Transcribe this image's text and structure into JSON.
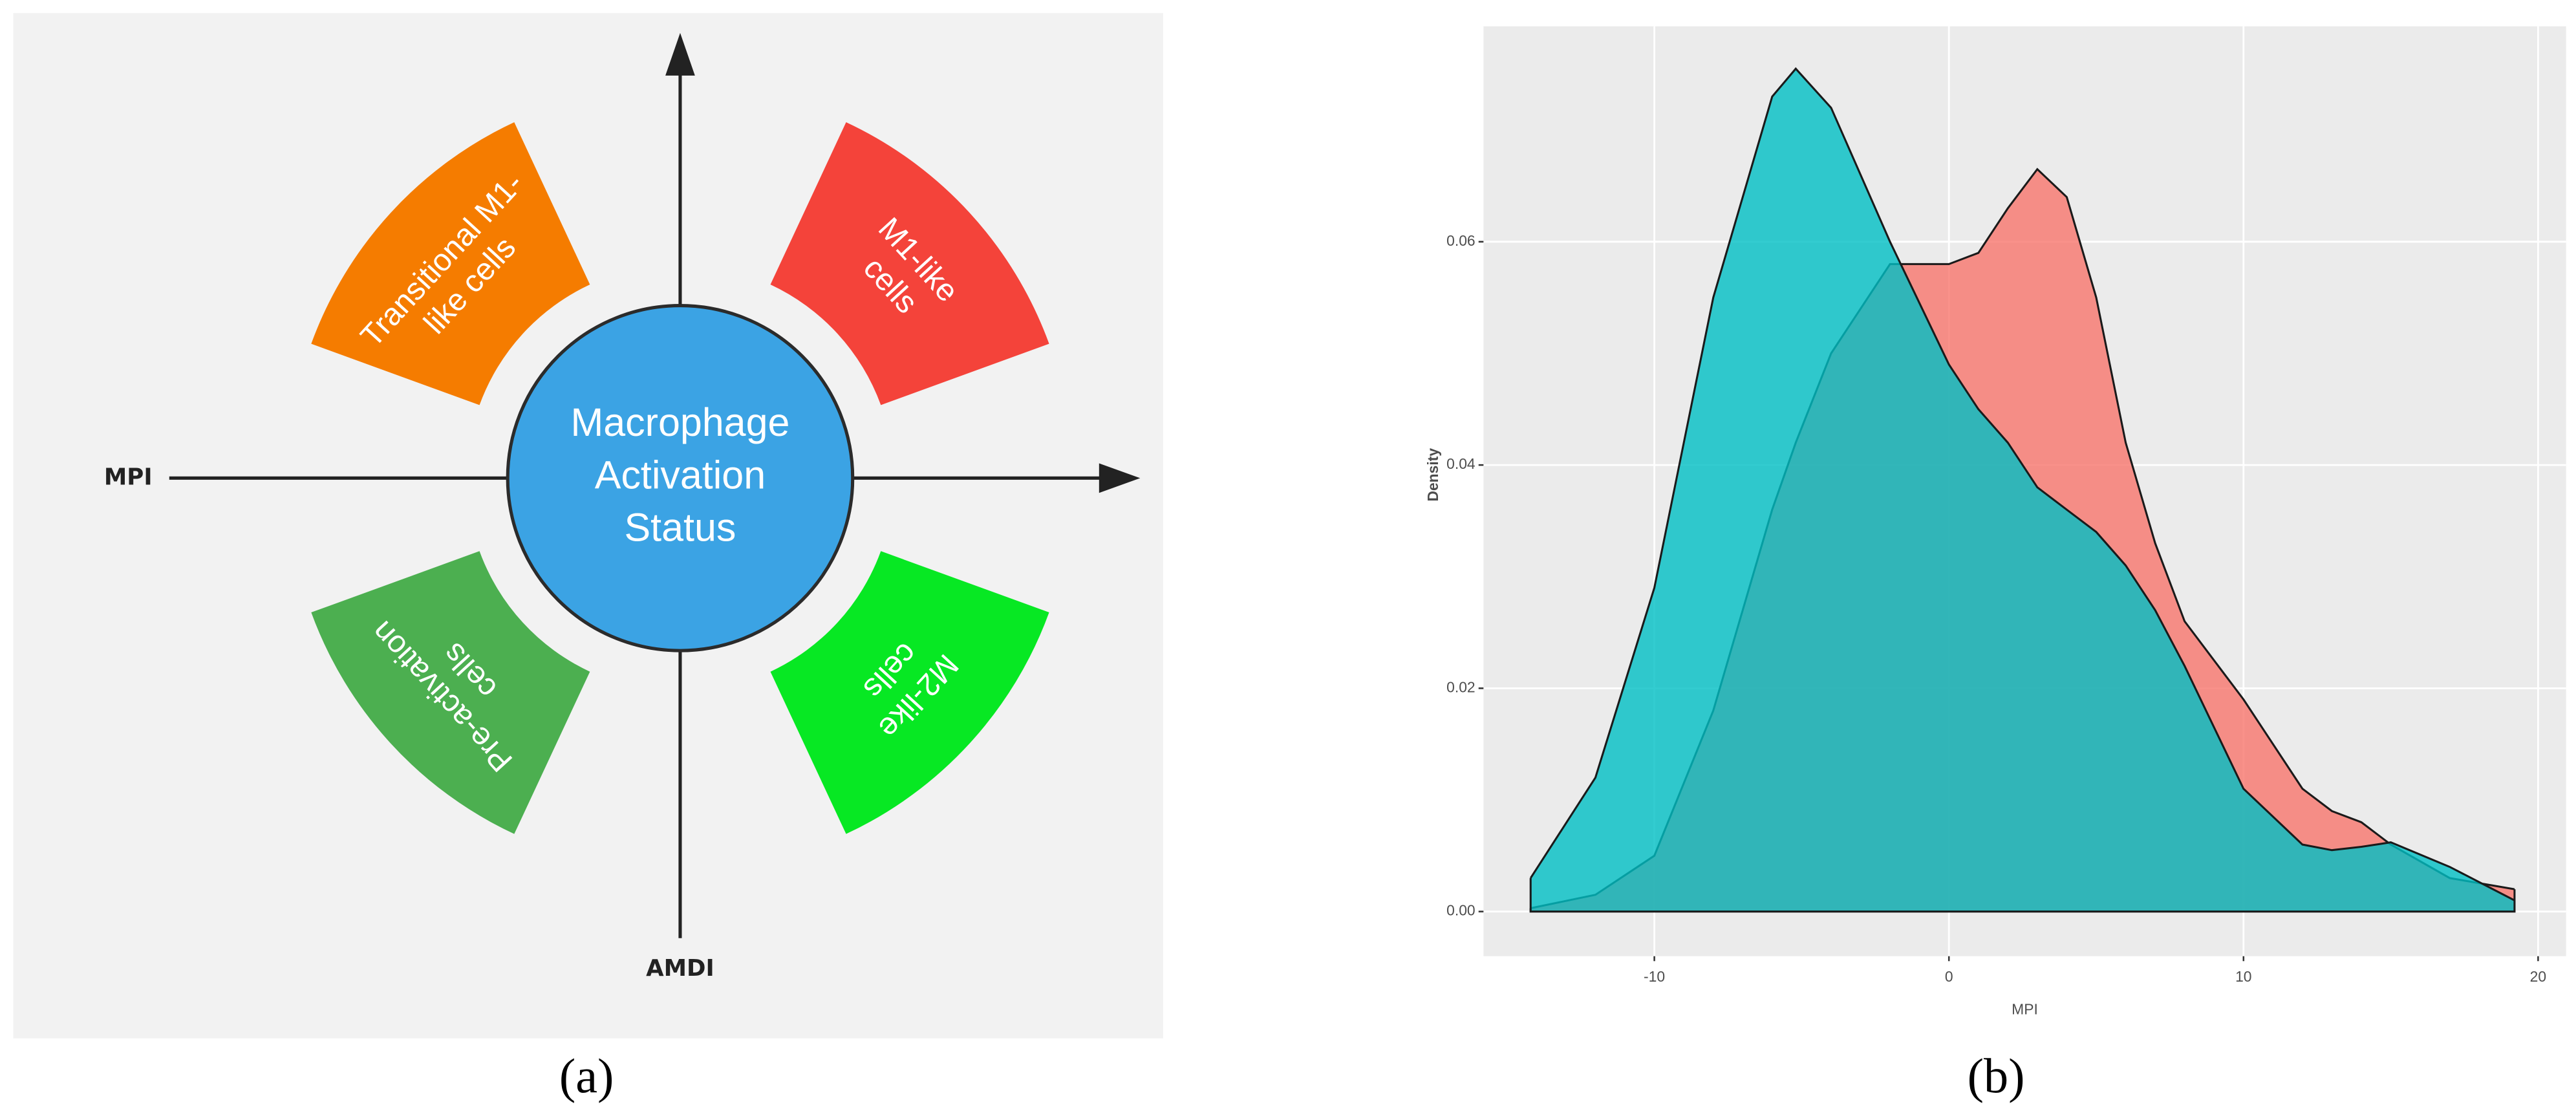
{
  "diagram": {
    "center_lines": [
      "Macrophage",
      "Activation",
      "Status"
    ],
    "x_axis": "MPI",
    "y_axis": "AMDI",
    "panel_label": "(a)",
    "sectors": [
      {
        "lines": [
          "Transitional M1-",
          "like cells"
        ],
        "color": "#f57c00"
      },
      {
        "lines": [
          "M1-like",
          "cells"
        ],
        "color": "#f4433a"
      },
      {
        "lines": [
          "M2-like",
          "cells"
        ],
        "color": "#07e823"
      },
      {
        "lines": [
          "Pre-activation",
          "cells"
        ],
        "color": "#4caf50"
      }
    ]
  },
  "chart_data": {
    "type": "density",
    "panel_label": "(b)",
    "x_label": "MPI",
    "y_label": "Density",
    "x": [
      -14.2,
      -12,
      -10,
      -8,
      -6,
      -5.2,
      -4,
      -2,
      0,
      1,
      2,
      3,
      4,
      5,
      6,
      7,
      8,
      10,
      12,
      13,
      14,
      15,
      17,
      19.2
    ],
    "series": [
      {
        "color": "#F8766D",
        "values": [
          0.0003,
          0.0015,
          0.005,
          0.018,
          0.036,
          0.042,
          0.05,
          0.058,
          0.058,
          0.059,
          0.063,
          0.0665,
          0.064,
          0.055,
          0.042,
          0.033,
          0.026,
          0.019,
          0.011,
          0.009,
          0.008,
          0.006,
          0.003,
          0.002
        ]
      },
      {
        "color": "#00BFC4",
        "values": [
          0.003,
          0.012,
          0.029,
          0.055,
          0.073,
          0.0755,
          0.072,
          0.06,
          0.049,
          0.045,
          0.042,
          0.038,
          0.036,
          0.034,
          0.031,
          0.027,
          0.022,
          0.011,
          0.006,
          0.0055,
          0.0058,
          0.0062,
          0.004,
          0.001
        ]
      }
    ],
    "opacity": 0.8,
    "xlim": [
      -15.8,
      20.95
    ],
    "ylim": [
      -0.004,
      0.0793
    ],
    "xticks": [
      -10,
      0,
      10,
      20
    ],
    "yticks": [
      {
        "value": 0,
        "label": "0.00"
      },
      {
        "value": 0.02,
        "label": "0.02"
      },
      {
        "value": 0.04,
        "label": "0.04"
      },
      {
        "value": 0.06,
        "label": "0.06"
      }
    ],
    "grid": true
  }
}
